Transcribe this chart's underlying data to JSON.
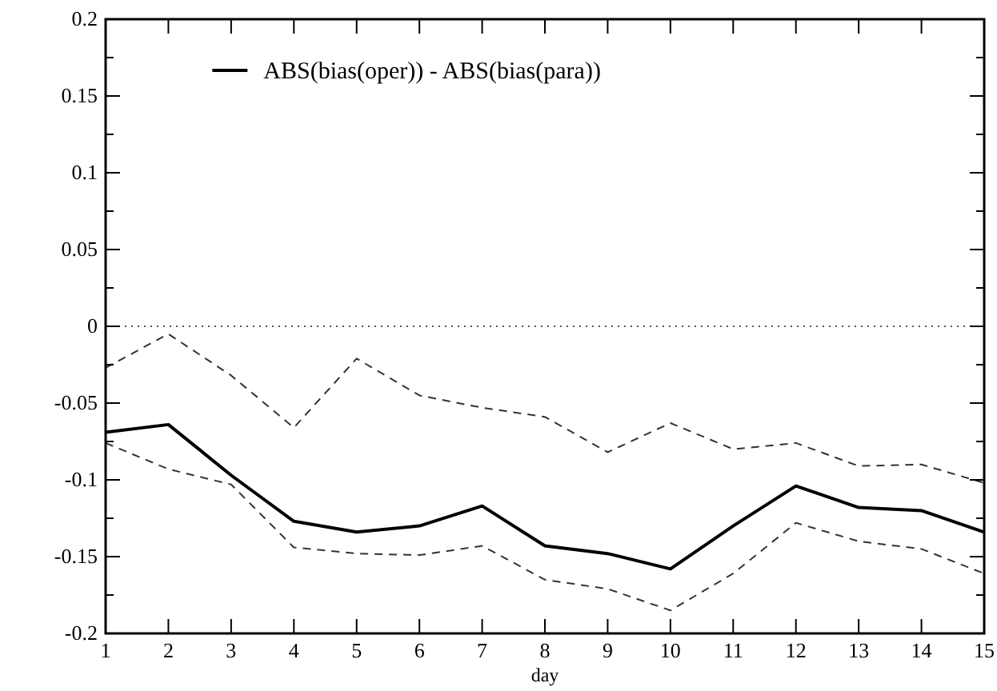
{
  "chart_data": {
    "type": "line",
    "xlabel": "day",
    "x": [
      1,
      2,
      3,
      4,
      5,
      6,
      7,
      8,
      9,
      10,
      11,
      12,
      13,
      14,
      15
    ],
    "xlim": [
      1,
      15
    ],
    "xticks": [
      1,
      2,
      3,
      4,
      5,
      6,
      7,
      8,
      9,
      10,
      11,
      12,
      13,
      14,
      15
    ],
    "ylim": [
      -0.2,
      0.2
    ],
    "yticks": [
      -0.2,
      {
        "value": -0.175,
        "label": null
      },
      -0.15,
      {
        "value": -0.125,
        "label": null
      },
      -0.1,
      {
        "value": -0.075,
        "label": null
      },
      -0.05,
      {
        "value": -0.025,
        "label": null
      },
      0,
      {
        "value": 0.025,
        "label": null
      },
      0.05,
      {
        "value": 0.075,
        "label": null
      },
      0.1,
      {
        "value": 0.125,
        "label": null
      },
      0.15,
      {
        "value": 0.175,
        "label": null
      },
      0.2
    ],
    "grid": false,
    "legend": "top left",
    "ref_lines": [
      {
        "axis": "y",
        "value": 0,
        "line_style": "dotted",
        "color": "#555555"
      }
    ],
    "series": [
      {
        "name": "ABS(bias(oper)) - ABS(bias(para))",
        "color": "#000000",
        "line_style": "solid",
        "values": [
          -0.069,
          -0.064,
          -0.097,
          -0.127,
          -0.134,
          -0.13,
          -0.117,
          -0.143,
          -0.148,
          -0.158,
          -0.13,
          -0.104,
          -0.118,
          -0.12,
          -0.134
        ]
      },
      {
        "color": "#333333",
        "line_style": "dashed",
        "values": [
          -0.027,
          -0.005,
          -0.032,
          -0.066,
          -0.021,
          -0.045,
          -0.053,
          -0.059,
          -0.082,
          -0.063,
          -0.08,
          -0.076,
          -0.091,
          -0.09,
          -0.102
        ]
      },
      {
        "color": "#333333",
        "line_style": "dashed",
        "values": [
          -0.076,
          -0.093,
          -0.103,
          -0.144,
          -0.148,
          -0.149,
          -0.143,
          -0.165,
          -0.171,
          -0.185,
          -0.161,
          -0.128,
          -0.14,
          -0.145,
          -0.161
        ]
      }
    ]
  }
}
